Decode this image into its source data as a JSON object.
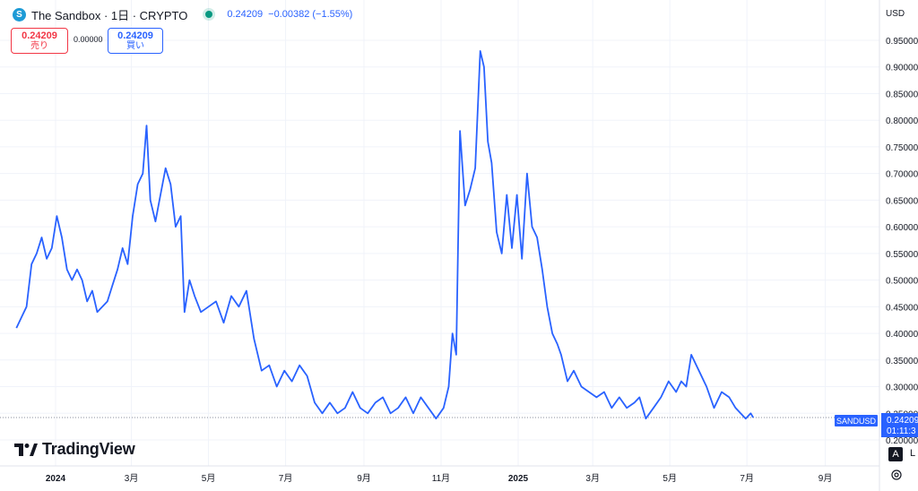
{
  "header": {
    "logo_letter": "S",
    "title": "The Sandbox · 1日 · CRYPTO",
    "price": "0.24209",
    "change": "−0.00382 (−1.55%)"
  },
  "trade": {
    "sell_price": "0.24209",
    "sell_label": "売り",
    "spread": "0.00000",
    "buy_price": "0.24209",
    "buy_label": "買い"
  },
  "price_axis": {
    "currency": "USD",
    "auto_label": "A",
    "auto_tail": "L"
  },
  "last_price_marker": {
    "symbol": "SANDUSD",
    "price": "0.24209",
    "countdown": "01:11:3"
  },
  "brand": {
    "name": "TradingView"
  },
  "colors": {
    "line": "#2962ff",
    "axis_text": "#131722",
    "grid": "#f0f3fa"
  },
  "chart_data": {
    "type": "line",
    "series": [
      {
        "x": [
          "2023-12-01",
          "2023-12-05",
          "2023-12-09",
          "2023-12-13",
          "2023-12-17",
          "2023-12-21",
          "2023-12-25",
          "2023-12-29",
          "2024-01-02",
          "2024-01-06",
          "2024-01-10",
          "2024-01-14",
          "2024-01-18",
          "2024-01-22",
          "2024-01-26",
          "2024-01-30",
          "2024-02-03",
          "2024-02-07",
          "2024-02-11",
          "2024-02-15",
          "2024-02-19",
          "2024-02-23",
          "2024-02-27",
          "2024-03-02",
          "2024-03-06",
          "2024-03-10",
          "2024-03-13",
          "2024-03-16",
          "2024-03-20",
          "2024-03-24",
          "2024-03-28",
          "2024-04-01",
          "2024-04-05",
          "2024-04-09",
          "2024-04-12",
          "2024-04-16",
          "2024-04-20",
          "2024-04-25",
          "2024-05-01",
          "2024-05-07",
          "2024-05-13",
          "2024-05-19",
          "2024-05-25",
          "2024-05-31",
          "2024-06-06",
          "2024-06-12",
          "2024-06-18",
          "2024-06-24",
          "2024-06-30",
          "2024-07-06",
          "2024-07-12",
          "2024-07-18",
          "2024-07-24",
          "2024-07-30",
          "2024-08-05",
          "2024-08-11",
          "2024-08-17",
          "2024-08-23",
          "2024-08-29",
          "2024-09-04",
          "2024-09-10",
          "2024-09-16",
          "2024-09-22",
          "2024-09-28",
          "2024-10-04",
          "2024-10-10",
          "2024-10-16",
          "2024-10-22",
          "2024-10-28",
          "2024-11-03",
          "2024-11-07",
          "2024-11-10",
          "2024-11-13",
          "2024-11-16",
          "2024-11-20",
          "2024-11-24",
          "2024-11-28",
          "2024-12-02",
          "2024-12-05",
          "2024-12-08",
          "2024-12-11",
          "2024-12-15",
          "2024-12-19",
          "2024-12-23",
          "2024-12-27",
          "2024-12-31",
          "2025-01-04",
          "2025-01-08",
          "2025-01-12",
          "2025-01-16",
          "2025-01-20",
          "2025-01-24",
          "2025-01-28",
          "2025-02-01",
          "2025-02-04",
          "2025-02-09",
          "2025-02-14",
          "2025-02-20",
          "2025-02-26",
          "2025-03-04",
          "2025-03-10",
          "2025-03-16",
          "2025-03-22",
          "2025-03-28",
          "2025-04-03",
          "2025-04-07",
          "2025-04-12",
          "2025-04-18",
          "2025-04-24",
          "2025-04-30",
          "2025-05-06",
          "2025-05-10",
          "2025-05-14",
          "2025-05-18",
          "2025-05-24",
          "2025-05-30",
          "2025-06-05",
          "2025-06-11",
          "2025-06-17",
          "2025-06-22",
          "2025-06-26",
          "2025-06-30",
          "2025-07-04",
          "2025-07-06"
        ],
        "y": [
          0.41,
          0.43,
          0.45,
          0.53,
          0.55,
          0.58,
          0.54,
          0.56,
          0.62,
          0.58,
          0.52,
          0.5,
          0.52,
          0.5,
          0.46,
          0.48,
          0.44,
          0.45,
          0.46,
          0.49,
          0.52,
          0.56,
          0.53,
          0.62,
          0.68,
          0.7,
          0.79,
          0.65,
          0.61,
          0.66,
          0.71,
          0.68,
          0.6,
          0.62,
          0.44,
          0.5,
          0.47,
          0.44,
          0.45,
          0.46,
          0.42,
          0.47,
          0.45,
          0.48,
          0.39,
          0.33,
          0.34,
          0.3,
          0.33,
          0.31,
          0.34,
          0.32,
          0.27,
          0.25,
          0.27,
          0.25,
          0.26,
          0.29,
          0.26,
          0.25,
          0.27,
          0.28,
          0.25,
          0.26,
          0.28,
          0.25,
          0.28,
          0.26,
          0.24,
          0.26,
          0.3,
          0.4,
          0.36,
          0.78,
          0.64,
          0.67,
          0.71,
          0.93,
          0.9,
          0.76,
          0.72,
          0.59,
          0.55,
          0.66,
          0.56,
          0.66,
          0.54,
          0.7,
          0.6,
          0.58,
          0.52,
          0.45,
          0.4,
          0.38,
          0.36,
          0.31,
          0.33,
          0.3,
          0.29,
          0.28,
          0.29,
          0.26,
          0.28,
          0.26,
          0.27,
          0.28,
          0.24,
          0.26,
          0.28,
          0.31,
          0.29,
          0.31,
          0.3,
          0.36,
          0.33,
          0.3,
          0.26,
          0.29,
          0.28,
          0.26,
          0.25,
          0.24,
          0.25,
          0.242
        ]
      }
    ],
    "x_ticks": [
      {
        "date": "2024-01-01",
        "label": "2024",
        "bold": true
      },
      {
        "date": "2024-03-01",
        "label": "3月"
      },
      {
        "date": "2024-05-01",
        "label": "5月"
      },
      {
        "date": "2024-07-01",
        "label": "7月"
      },
      {
        "date": "2024-09-01",
        "label": "9月"
      },
      {
        "date": "2024-11-01",
        "label": "11月"
      },
      {
        "date": "2025-01-01",
        "label": "2025",
        "bold": true
      },
      {
        "date": "2025-03-01",
        "label": "3月"
      },
      {
        "date": "2025-05-01",
        "label": "5月"
      },
      {
        "date": "2025-07-01",
        "label": "7月"
      },
      {
        "date": "2025-09-01",
        "label": "9月"
      }
    ],
    "y_ticks": [
      "0.95000",
      "0.90000",
      "0.85000",
      "0.80000",
      "0.75000",
      "0.70000",
      "0.65000",
      "0.60000",
      "0.55000",
      "0.50000",
      "0.45000",
      "0.40000",
      "0.35000",
      "0.30000",
      "0.25000",
      "0.20000"
    ],
    "ylim": [
      0.2,
      0.95
    ],
    "grid": true,
    "last_value": 0.24209
  }
}
